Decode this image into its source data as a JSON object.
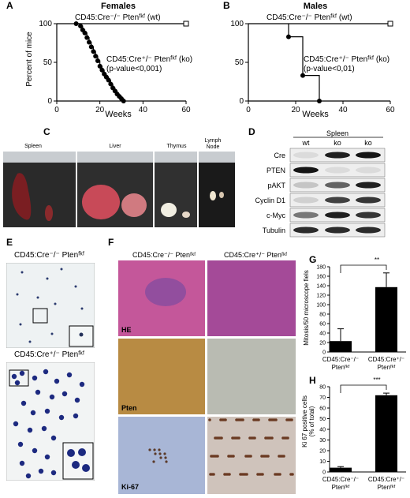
{
  "panels": {
    "A": "A",
    "B": "B",
    "C": "C",
    "D": "D",
    "E": "E",
    "F": "F",
    "G": "G",
    "H": "H"
  },
  "panel_a": {
    "title": "Females",
    "ylabel": "Percent of mice",
    "xlabel": "Weeks",
    "wt_label": "CD45:Cre⁻/⁻ Ptenᶠᵏᶠ (wt)",
    "ko_label": "CD45:Cre⁺/⁻ Ptenᶠᵏᶠ (ko)",
    "pvalue": "(p-value<0,001)",
    "yticks": [
      "0",
      "50",
      "100"
    ],
    "xticks": [
      "0",
      "20",
      "40",
      "60"
    ]
  },
  "panel_b": {
    "title": "Males",
    "xlabel": "Weeks",
    "wt_label": "CD45:Cre⁻/⁻ Ptenᶠᵏᶠ (wt)",
    "ko_label": "CD45:Cre⁺/⁻ Ptenᶠᵏᶠ (ko)",
    "pvalue": "(p-value<0,01)",
    "yticks": [
      "0",
      "50",
      "100"
    ],
    "xticks": [
      "0",
      "20",
      "40",
      "60"
    ]
  },
  "panel_c": {
    "organs": [
      "Spleen",
      "Liver",
      "Thymus",
      "Lymph Node"
    ]
  },
  "panel_d": {
    "tissue": "Spleen",
    "lanes": [
      "wt",
      "ko",
      "ko"
    ],
    "rows": [
      "Cre",
      "PTEN",
      "pAKT",
      "Cyclin D1",
      "c-Myc",
      "Tubulin"
    ]
  },
  "panel_e": {
    "top_label": "CD45:Cre⁻/⁻ Ptenᶠᵏᶠ",
    "bottom_label": "CD45:Cre⁺/⁻ Ptenᶠᵏᶠ"
  },
  "panel_f": {
    "col1": "CD45:Cre⁻/⁻ Ptenᶠᵏᶠ",
    "col2": "CD45:Cre⁺/⁻ Ptenᶠᵏᶠ",
    "stains": [
      "HE",
      "Pten",
      "Ki-67"
    ]
  },
  "panel_g": {
    "ylabel": "Mitosis/50 microscope fiels",
    "significance": "**",
    "yticks": [
      "0",
      "20",
      "40",
      "60",
      "80",
      "100",
      "120",
      "140",
      "160",
      "180"
    ],
    "bar1_label": [
      "CD45:Cre⁻/⁻",
      "Ptenᶠᵏᶠ"
    ],
    "bar2_label": [
      "CD45:Cre⁺/⁻",
      "Ptenᶠᵏᶠ"
    ]
  },
  "panel_h": {
    "ylabel": "Ki 67 positive cells",
    "ylabel2": "(% of total)",
    "significance": "***",
    "yticks": [
      "0",
      "10",
      "20",
      "30",
      "40",
      "50",
      "60",
      "70",
      "80"
    ],
    "bar1_label": [
      "CD45:Cre⁻/⁻",
      "Ptenᶠᵏᶠ"
    ],
    "bar2_label": [
      "CD45:Cre⁺/⁻",
      "Ptenᶠᵏᶠ"
    ]
  },
  "chart_data": [
    {
      "type": "line",
      "title": "Females",
      "xlabel": "Weeks",
      "ylabel": "Percent of mice",
      "xlim": [
        0,
        60
      ],
      "ylim": [
        0,
        100
      ],
      "series": [
        {
          "name": "CD45:Cre⁻/⁻ Ptenᶠᵏᶠ (wt)",
          "x": [
            0,
            60
          ],
          "y": [
            100,
            100
          ]
        },
        {
          "name": "CD45:Cre⁺/⁻ Ptenᶠᵏᶠ (ko)",
          "x": [
            9,
            11,
            12,
            13,
            14,
            15,
            16,
            17,
            18,
            19,
            20,
            21,
            22,
            23,
            24,
            25,
            26,
            27,
            28,
            29,
            30,
            31
          ],
          "y": [
            100,
            97,
            92,
            88,
            82,
            76,
            70,
            64,
            58,
            52,
            45,
            40,
            35,
            31,
            27,
            22,
            17,
            13,
            9,
            6,
            3,
            0
          ]
        }
      ]
    },
    {
      "type": "line",
      "title": "Males",
      "xlabel": "Weeks",
      "xlim": [
        0,
        60
      ],
      "ylim": [
        0,
        100
      ],
      "series": [
        {
          "name": "CD45:Cre⁻/⁻ Ptenᶠᵏᶠ (wt)",
          "x": [
            0,
            60
          ],
          "y": [
            100,
            100
          ]
        },
        {
          "name": "CD45:Cre⁺/⁻ Ptenᶠᵏᶠ (ko)",
          "x": [
            17,
            23,
            30
          ],
          "y": [
            83,
            33,
            0
          ]
        }
      ]
    },
    {
      "type": "bar",
      "ylabel": "Mitosis/50 microscope fiels",
      "ylim": [
        0,
        180
      ],
      "categories": [
        "CD45:Cre⁻/⁻ Ptenᶠᵏᶠ",
        "CD45:Cre⁺/⁻ Ptenᶠᵏᶠ"
      ],
      "values": [
        23,
        137
      ],
      "errors": [
        26,
        30
      ]
    },
    {
      "type": "bar",
      "ylabel": "Ki 67 positive cells (% of total)",
      "ylim": [
        0,
        80
      ],
      "categories": [
        "CD45:Cre⁻/⁻ Ptenᶠᵏᶠ",
        "CD45:Cre⁺/⁻ Ptenᶠᵏᶠ"
      ],
      "values": [
        4,
        72
      ],
      "errors": [
        1,
        2
      ]
    }
  ]
}
